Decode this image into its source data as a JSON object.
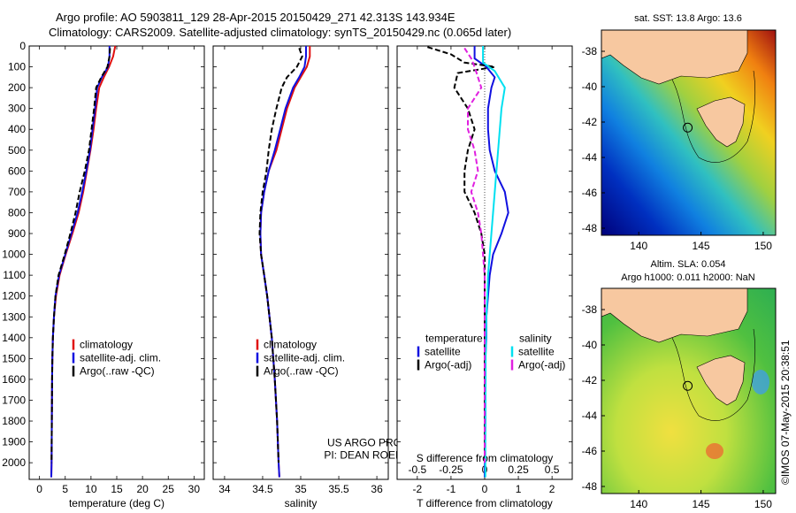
{
  "header": {
    "title_line1": "Argo profile: AO 5903811_129 28-Apr-2015 20150429_271 42.313S 143.934E",
    "title_line2": "Climatology: CARS2009. Satellite-adjusted climatology: synTS_20150429.nc (0.065d later)"
  },
  "colors": {
    "climatology": "#e01010",
    "satellite": "#1010e0",
    "argo": "#000000",
    "sat_sal": "#00e0f0",
    "argo_sal": "#e020e0",
    "land": "#f7c8a0"
  },
  "depth_ticks": [
    "0",
    "100",
    "200",
    "300",
    "400",
    "500",
    "600",
    "700",
    "800",
    "900",
    "1000",
    "1100",
    "1200",
    "1300",
    "1400",
    "1500",
    "1600",
    "1700",
    "1800",
    "1900",
    "2000"
  ],
  "chart_data": [
    {
      "type": "line",
      "xlabel": "temperature (deg C)",
      "xticks": [
        "0",
        "5",
        "10",
        "15",
        "20",
        "25",
        "30"
      ],
      "xlim": [
        -2,
        32
      ],
      "ylim": [
        2080,
        0
      ],
      "legend": {
        "position": "center-right",
        "items": [
          "climatology",
          "satellite-adj. clim.",
          "Argo(..raw -QC)"
        ]
      },
      "series": [
        {
          "name": "climatology",
          "style": "climatology",
          "x": [
            14.7,
            14.3,
            13.5,
            12.5,
            11.6,
            11.0,
            10.5,
            9.9,
            9.2,
            8.5,
            7.6,
            6.4,
            5.1,
            3.9,
            3.2,
            2.8,
            2.6,
            2.5,
            2.45,
            2.4,
            2.35,
            2.3
          ],
          "y": [
            0,
            50,
            100,
            150,
            200,
            300,
            400,
            500,
            600,
            700,
            800,
            900,
            1000,
            1100,
            1200,
            1300,
            1400,
            1500,
            1600,
            1800,
            2000,
            2070
          ]
        },
        {
          "name": "satellite-adj. clim.",
          "style": "satellite",
          "x": [
            13.6,
            13.6,
            13.3,
            12.1,
            11.2,
            10.8,
            10.3,
            9.8,
            9.1,
            8.3,
            7.4,
            6.2,
            5.0,
            3.8,
            3.1,
            2.8,
            2.6,
            2.5,
            2.45,
            2.4,
            2.35,
            2.3
          ],
          "y": [
            0,
            50,
            100,
            150,
            200,
            300,
            400,
            500,
            600,
            700,
            800,
            900,
            1000,
            1100,
            1200,
            1300,
            1400,
            1500,
            1600,
            1800,
            2000,
            2070
          ]
        },
        {
          "name": "Argo(..raw -QC)",
          "style": "argo",
          "x": [
            13.7,
            13.6,
            13.2,
            12.0,
            11.0,
            10.6,
            10.1,
            9.6,
            8.8,
            7.8,
            7.0,
            6.0,
            4.9,
            3.7,
            3.1,
            2.8,
            2.6,
            2.5,
            2.45,
            2.4,
            2.35
          ],
          "y": [
            10,
            50,
            100,
            150,
            200,
            300,
            400,
            500,
            600,
            700,
            800,
            900,
            1000,
            1100,
            1200,
            1300,
            1400,
            1500,
            1600,
            1800,
            2000
          ]
        }
      ]
    },
    {
      "type": "line",
      "xlabel": "salinity",
      "xticks": [
        "34",
        "34.5",
        "35",
        "35.5",
        "36"
      ],
      "xlim": [
        33.85,
        36.15
      ],
      "ylim": [
        2080,
        0
      ],
      "legend": {
        "position": "center-right",
        "items": [
          "climatology",
          "satellite-adj. clim.",
          "Argo(..raw -QC)"
        ]
      },
      "annotations": [
        "US ARGO PROJECT",
        "PI: DEAN ROEMMICH"
      ],
      "series": [
        {
          "name": "climatology",
          "style": "climatology",
          "x": [
            35.12,
            35.12,
            35.08,
            35.0,
            34.92,
            34.82,
            34.75,
            34.68,
            34.58,
            34.52,
            34.48,
            34.47,
            34.48,
            34.52,
            34.56,
            34.59,
            34.62,
            34.64,
            34.66,
            34.69,
            34.71,
            34.72
          ],
          "y": [
            0,
            50,
            100,
            150,
            200,
            300,
            400,
            500,
            600,
            700,
            800,
            900,
            1000,
            1100,
            1200,
            1300,
            1400,
            1500,
            1600,
            1800,
            2000,
            2070
          ]
        },
        {
          "name": "satellite-adj. clim.",
          "style": "satellite",
          "x": [
            35.07,
            35.07,
            35.05,
            34.98,
            34.9,
            34.8,
            34.73,
            34.66,
            34.58,
            34.52,
            34.48,
            34.47,
            34.48,
            34.52,
            34.56,
            34.59,
            34.62,
            34.64,
            34.66,
            34.69,
            34.71,
            34.72
          ],
          "y": [
            0,
            50,
            100,
            150,
            200,
            300,
            400,
            500,
            600,
            700,
            800,
            900,
            1000,
            1100,
            1200,
            1300,
            1400,
            1500,
            1600,
            1800,
            2000,
            2070
          ]
        },
        {
          "name": "Argo(..raw -QC)",
          "style": "argo",
          "x": [
            34.98,
            35.02,
            34.95,
            34.82,
            34.75,
            34.68,
            34.62,
            34.58,
            34.55,
            34.5,
            34.47,
            34.46,
            34.48,
            34.52,
            34.56,
            34.59,
            34.62,
            34.64,
            34.66,
            34.69,
            34.71
          ],
          "y": [
            10,
            50,
            100,
            150,
            200,
            300,
            400,
            500,
            600,
            700,
            800,
            900,
            1000,
            1100,
            1200,
            1300,
            1400,
            1500,
            1600,
            1800,
            2000
          ]
        }
      ]
    },
    {
      "type": "line",
      "xlabel": "T difference from climatology",
      "xticks": [
        "-2",
        "-1",
        "0",
        "1",
        "2"
      ],
      "xlim": [
        -2.6,
        2.6
      ],
      "ylim": [
        2080,
        0
      ],
      "secondary_xlabel": "S difference from climatology",
      "secondary_xticks": [
        "-0.5",
        "-0.25",
        "0",
        "0.25",
        "0.5"
      ],
      "legend": {
        "position": "center-left",
        "items": [
          "temperature",
          "satellite",
          "Argo(-adj)",
          "salinity",
          "satellite",
          "Argo(-adj)"
        ]
      },
      "series": [
        {
          "name": "satellite",
          "group": "temperature",
          "style": "satellite",
          "x": [
            -0.3,
            -0.3,
            0.05,
            0.3,
            0.2,
            0.1,
            0.1,
            0.15,
            0.3,
            0.6,
            0.7,
            0.5,
            0.25,
            0.15,
            0.1,
            0.05,
            0.05,
            0.02,
            0.02,
            0.0
          ],
          "y": [
            0,
            60,
            100,
            150,
            200,
            300,
            400,
            500,
            600,
            700,
            800,
            900,
            1000,
            1100,
            1200,
            1300,
            1400,
            1500,
            1800,
            2070
          ]
        },
        {
          "name": "Argo(-adj)",
          "group": "temperature",
          "style": "argo",
          "x": [
            -1.7,
            -1.0,
            -0.6,
            0.3,
            -0.8,
            -0.9,
            -0.5,
            -0.3,
            -0.5,
            -0.6,
            -0.6,
            -0.3,
            -0.1,
            0.0,
            0.0,
            0.0,
            0.0,
            0.0,
            0.0,
            0.0
          ],
          "y": [
            5,
            40,
            80,
            100,
            130,
            200,
            300,
            400,
            500,
            600,
            700,
            800,
            900,
            1000,
            1100,
            1300,
            1500,
            1700,
            1900,
            2000
          ]
        },
        {
          "name": "satellite",
          "group": "salinity",
          "style": "sat_sal",
          "x": [
            -0.05,
            -0.05,
            0.3,
            0.6,
            0.5,
            0.45,
            0.4,
            0.35,
            0.3,
            0.25,
            0.2,
            0.15,
            0.1,
            0.08,
            0.05,
            0.04,
            0.03,
            0.03,
            0.02,
            0.02
          ],
          "y": [
            0,
            80,
            120,
            200,
            300,
            400,
            500,
            600,
            700,
            800,
            900,
            1000,
            1100,
            1200,
            1300,
            1400,
            1500,
            1600,
            1800,
            2070
          ]
        },
        {
          "name": "Argo(-adj)",
          "group": "salinity",
          "style": "argo_sal",
          "x": [
            -0.6,
            -0.4,
            -0.3,
            -0.1,
            -0.5,
            -0.5,
            -0.3,
            -0.2,
            -0.4,
            -0.2,
            -0.1,
            -0.05,
            0.0,
            0.0,
            0.0,
            0.0,
            0.0,
            0.0
          ],
          "y": [
            10,
            60,
            100,
            200,
            300,
            400,
            500,
            600,
            700,
            800,
            900,
            1000,
            1100,
            1200,
            1400,
            1600,
            1800,
            2000
          ]
        }
      ]
    }
  ],
  "maps": [
    {
      "title": "sat. SST: 13.8 Argo: 13.6",
      "type": "heatmap",
      "xticks": [
        "140",
        "145",
        "150"
      ],
      "yticks": [
        "-38",
        "-40",
        "-42",
        "-44",
        "-46",
        "-48"
      ],
      "xlim": [
        137,
        151
      ],
      "ylim": [
        -48.4,
        -36.8
      ],
      "argo_position": {
        "lon": 143.934,
        "lat": -42.313
      }
    },
    {
      "title_line1": "Altim. SLA: 0.054",
      "title_line2": "Argo h1000: 0.011 h2000: NaN",
      "type": "heatmap",
      "xticks": [
        "140",
        "145",
        "150"
      ],
      "yticks": [
        "-38",
        "-40",
        "-42",
        "-44",
        "-46",
        "-48"
      ],
      "xlim": [
        137,
        151
      ],
      "ylim": [
        -48.4,
        -36.8
      ],
      "argo_position": {
        "lon": 143.934,
        "lat": -42.313
      }
    }
  ],
  "footer_stamp": "©IMOS 07-May-2015 20:38:51"
}
